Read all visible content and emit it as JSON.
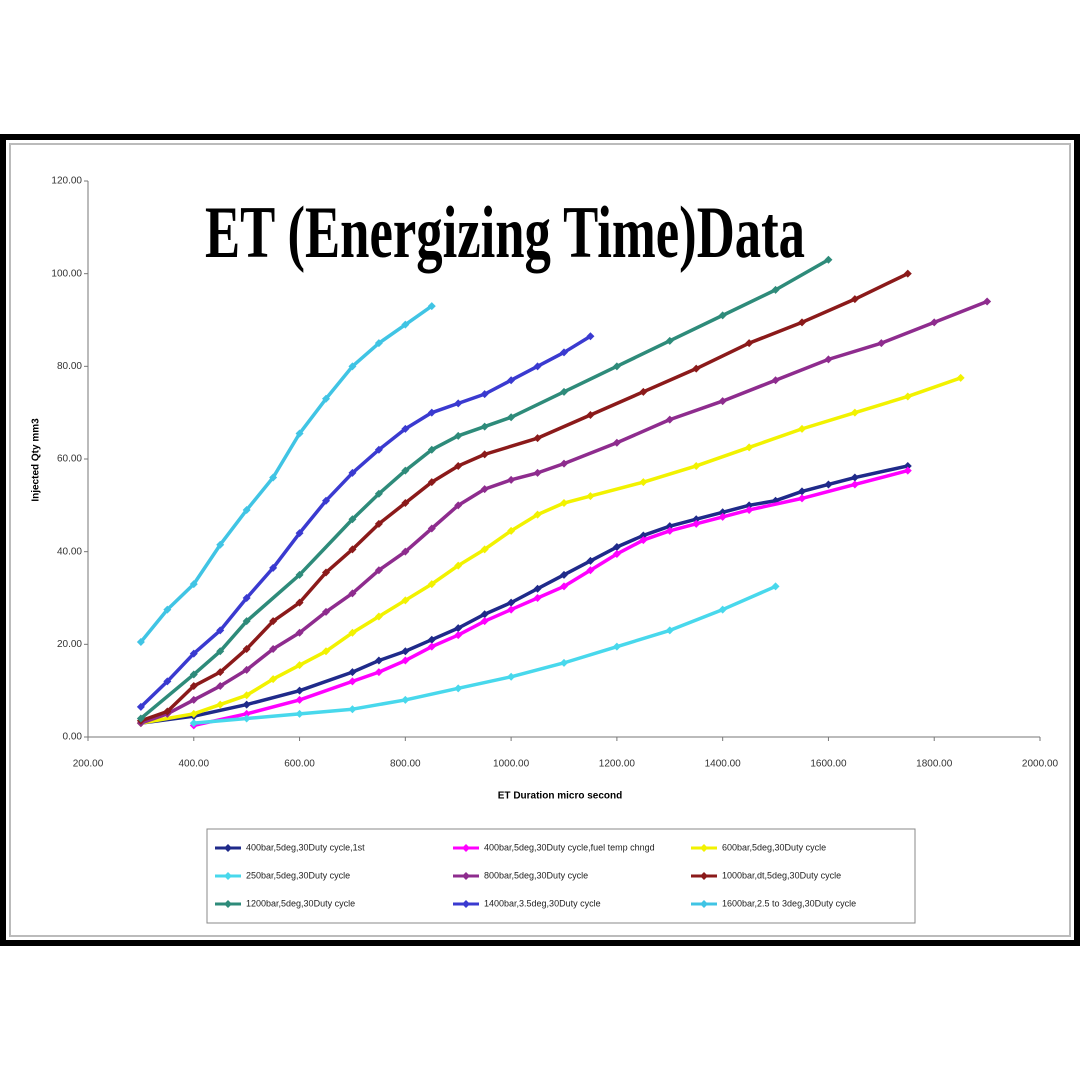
{
  "chart_data": {
    "type": "line",
    "title": "ET (Energizing Time)Data",
    "x_label": "ET Duration micro second",
    "y_label": "Injected Qty mm3",
    "xlim": [
      200,
      2000
    ],
    "ylim": [
      0,
      120
    ],
    "xticks": [
      {
        "value": 200,
        "label": "200.00"
      },
      {
        "value": 400,
        "label": "400.00"
      },
      {
        "value": 600,
        "label": "600.00"
      },
      {
        "value": 800,
        "label": "800.00"
      },
      {
        "value": 1000,
        "label": "1000.00"
      },
      {
        "value": 1200,
        "label": "1200.00"
      },
      {
        "value": 1400,
        "label": "1400.00"
      },
      {
        "value": 1600,
        "label": "1600.00"
      },
      {
        "value": 1800,
        "label": "1800.00"
      },
      {
        "value": 2000,
        "label": "2000.00"
      }
    ],
    "yticks": [
      {
        "value": 0,
        "label": "0.00"
      },
      {
        "value": 20,
        "label": "20.00"
      },
      {
        "value": 40,
        "label": "40.00"
      },
      {
        "value": 60,
        "label": "60.00"
      },
      {
        "value": 80,
        "label": "80.00"
      },
      {
        "value": 100,
        "label": "100.00"
      },
      {
        "value": 120,
        "label": "120.00"
      }
    ],
    "grid": false,
    "legend": "bottom",
    "series": [
      {
        "name": "400bar,5deg,30Duty cycle,1st",
        "color": "#1f2a8a",
        "x": [
          300,
          400,
          500,
          600,
          700,
          750,
          800,
          850,
          900,
          950,
          1000,
          1050,
          1100,
          1150,
          1200,
          1250,
          1300,
          1350,
          1400,
          1450,
          1500,
          1550,
          1600,
          1650,
          1750
        ],
        "values": [
          3,
          4.5,
          7,
          10,
          14,
          16.5,
          18.5,
          21,
          23.5,
          26.5,
          29,
          32,
          35,
          38,
          41,
          43.5,
          45.5,
          47,
          48.5,
          50,
          51,
          53,
          54.5,
          56,
          58.5
        ]
      },
      {
        "name": "400bar,5deg,30Duty cycle,fuel temp chngd",
        "color": "#ff00ff",
        "x": [
          400,
          500,
          600,
          700,
          750,
          800,
          850,
          900,
          950,
          1000,
          1050,
          1100,
          1150,
          1200,
          1250,
          1300,
          1350,
          1400,
          1450,
          1550,
          1650,
          1750
        ],
        "values": [
          2.5,
          5,
          8,
          12,
          14,
          16.5,
          19.5,
          22,
          25,
          27.5,
          30,
          32.5,
          36,
          39.5,
          42.5,
          44.5,
          46,
          47.5,
          49,
          51.5,
          54.5,
          57.5
        ]
      },
      {
        "name": "600bar,5deg,30Duty cycle",
        "color": "#f2f200",
        "x": [
          300,
          400,
          450,
          500,
          550,
          600,
          650,
          700,
          750,
          800,
          850,
          900,
          950,
          1000,
          1050,
          1100,
          1150,
          1250,
          1350,
          1450,
          1550,
          1650,
          1750,
          1850
        ],
        "values": [
          3,
          5,
          7,
          9,
          12.5,
          15.5,
          18.5,
          22.5,
          26,
          29.5,
          33,
          37,
          40.5,
          44.5,
          48,
          50.5,
          52,
          55,
          58.5,
          62.5,
          66.5,
          70,
          73.5,
          77.5
        ]
      },
      {
        "name": "250bar,5deg,30Duty cycle",
        "color": "#48d8ec",
        "x": [
          400,
          500,
          600,
          700,
          800,
          900,
          1000,
          1100,
          1200,
          1300,
          1400,
          1500
        ],
        "values": [
          3,
          4,
          5,
          6,
          8,
          10.5,
          13,
          16,
          19.5,
          23,
          27.5,
          32.5
        ]
      },
      {
        "name": "800bar,5deg,30Duty cycle",
        "color": "#8e2c8e",
        "x": [
          300,
          350,
          400,
          450,
          500,
          550,
          600,
          650,
          700,
          750,
          800,
          850,
          900,
          950,
          1000,
          1050,
          1100,
          1200,
          1300,
          1400,
          1500,
          1600,
          1700,
          1800,
          1900
        ],
        "values": [
          3,
          5,
          8,
          11,
          14.5,
          19,
          22.5,
          27,
          31,
          36,
          40,
          45,
          50,
          53.5,
          55.5,
          57,
          59,
          63.5,
          68.5,
          72.5,
          77,
          81.5,
          85,
          89.5,
          94
        ]
      },
      {
        "name": "1000bar,dt,5deg,30Duty cycle",
        "color": "#8b1a1a",
        "x": [
          300,
          350,
          400,
          450,
          500,
          550,
          600,
          650,
          700,
          750,
          800,
          850,
          900,
          950,
          1050,
          1150,
          1250,
          1350,
          1450,
          1550,
          1650,
          1750
        ],
        "values": [
          3.5,
          5.5,
          11,
          14,
          19,
          25,
          29,
          35.5,
          40.5,
          46,
          50.5,
          55,
          58.5,
          61,
          64.5,
          69.5,
          74.5,
          79.5,
          85,
          89.5,
          94.5,
          100
        ]
      },
      {
        "name": "1200bar,5deg,30Duty cycle",
        "color": "#2e8b7a",
        "x": [
          300,
          400,
          450,
          500,
          600,
          700,
          750,
          800,
          850,
          900,
          950,
          1000,
          1100,
          1200,
          1300,
          1400,
          1500,
          1600
        ],
        "values": [
          4,
          13.5,
          18.5,
          25,
          35,
          47,
          52.5,
          57.5,
          62,
          65,
          67,
          69,
          74.5,
          80,
          85.5,
          91,
          96.5,
          103
        ]
      },
      {
        "name": "1400bar,3.5deg,30Duty cycle",
        "color": "#3a3ad0",
        "x": [
          300,
          350,
          400,
          450,
          500,
          550,
          600,
          650,
          700,
          750,
          800,
          850,
          900,
          950,
          1000,
          1050,
          1100,
          1150
        ],
        "values": [
          6.5,
          12,
          18,
          23,
          30,
          36.5,
          44,
          51,
          57,
          62,
          66.5,
          70,
          72,
          74,
          77,
          80,
          83,
          86.5
        ]
      },
      {
        "name": "1600bar,2.5 to 3deg,30Duty cycle",
        "color": "#40c4e4",
        "x": [
          300,
          350,
          400,
          450,
          500,
          550,
          600,
          650,
          700,
          750,
          800,
          850
        ],
        "values": [
          20.5,
          27.5,
          33,
          41.5,
          49,
          56,
          65.5,
          73,
          80,
          85,
          89,
          93
        ]
      }
    ]
  }
}
